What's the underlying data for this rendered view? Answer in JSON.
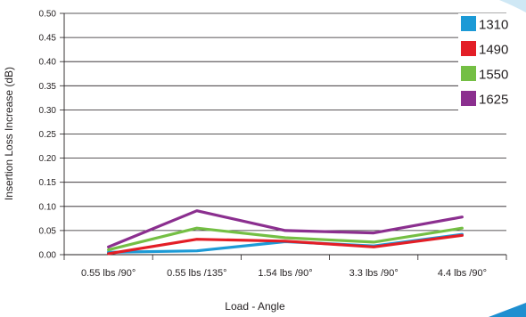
{
  "chart_data": {
    "type": "line",
    "title": "",
    "xlabel": "Load - Angle",
    "ylabel": "Insertion Loss Increase (dB)",
    "categories": [
      "0.55 lbs /90°",
      "0.55 lbs /135°",
      "1.54 lbs /90°",
      "3.3 lbs /90°",
      "4.4 lbs /90°"
    ],
    "ylim": [
      0,
      0.5
    ],
    "yticks": [
      "0.00",
      "0.05",
      "0.10",
      "0.15",
      "0.20",
      "0.25",
      "0.30",
      "0.35",
      "0.40",
      "0.45",
      "0.50"
    ],
    "grid": "horizontal",
    "legend_position": "right",
    "series": [
      {
        "name": "1310",
        "color": "#1c9ad6",
        "values": [
          0.005,
          0.008,
          0.027,
          0.018,
          0.042
        ]
      },
      {
        "name": "1490",
        "color": "#e31e26",
        "values": [
          0.002,
          0.032,
          0.028,
          0.016,
          0.04
        ]
      },
      {
        "name": "1550",
        "color": "#74bf44",
        "values": [
          0.01,
          0.055,
          0.035,
          0.026,
          0.055
        ]
      },
      {
        "name": "1625",
        "color": "#8b2f8f",
        "values": [
          0.016,
          0.091,
          0.05,
          0.045,
          0.078
        ]
      }
    ]
  }
}
